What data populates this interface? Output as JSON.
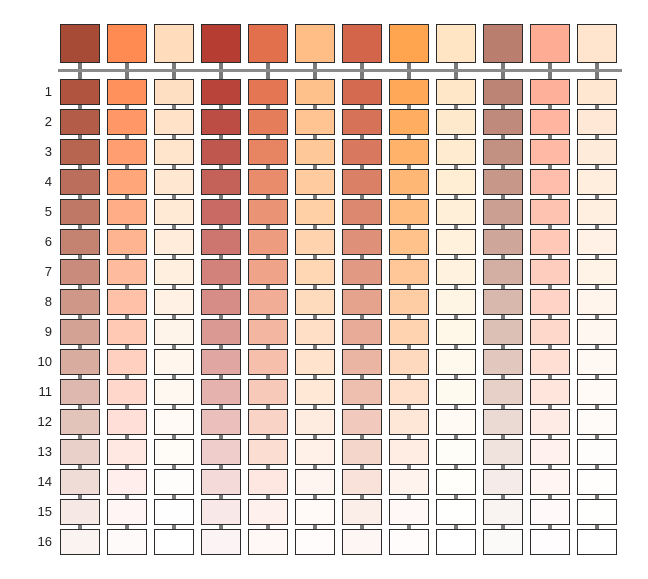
{
  "header_swatches": [
    "#a84b36",
    "#ff8b52",
    "#ffdcbc",
    "#b53d31",
    "#e2704c",
    "#ffbe86",
    "#d2654a",
    "#ffa44f",
    "#ffe5c4",
    "#b97e6d",
    "#ffac95",
    "#ffe5ce"
  ],
  "rows": [
    {
      "label": "1",
      "colors": [
        "#b0543f",
        "#ff915c",
        "#ffdfc2",
        "#b8443a",
        "#e47653",
        "#ffc18c",
        "#d46b50",
        "#ffa857",
        "#ffe7c8",
        "#bc8474",
        "#ffb09a",
        "#ffe7d2"
      ]
    },
    {
      "label": "2",
      "colors": [
        "#b35c48",
        "#ff9866",
        "#ffe2c7",
        "#bc4d44",
        "#e57d5b",
        "#ffc492",
        "#d67257",
        "#ffad60",
        "#ffe9cc",
        "#bf8a7b",
        "#ffb59f",
        "#ffe9d6"
      ]
    },
    {
      "label": "3",
      "colors": [
        "#b76551",
        "#ff9f71",
        "#ffe5cc",
        "#c0574e",
        "#e78563",
        "#ffc898",
        "#d8795f",
        "#ffb26a",
        "#ffebd0",
        "#c39182",
        "#ffb9a5",
        "#ffebda"
      ]
    },
    {
      "label": "4",
      "colors": [
        "#bb6e5b",
        "#ffa67b",
        "#ffe7d1",
        "#c46159",
        "#e98c6c",
        "#ffcb9f",
        "#da8067",
        "#ffb775",
        "#ffedd4",
        "#c7988a",
        "#ffbeab",
        "#ffeddd"
      ]
    },
    {
      "label": "5",
      "colors": [
        "#c07866",
        "#ffad86",
        "#ffeaD6",
        "#c96b64",
        "#eb9475",
        "#ffcfa6",
        "#dc8870",
        "#ffbd80",
        "#ffefd8",
        "#cba092",
        "#ffc3b1",
        "#ffefe1"
      ]
    },
    {
      "label": "6",
      "colors": [
        "#c48271",
        "#ffb491",
        "#ffecda",
        "#cd766f",
        "#ed9c7f",
        "#ffd3ad",
        "#df9079",
        "#ffc28b",
        "#fff1dc",
        "#cfa79a",
        "#ffc8b7",
        "#fff1e5"
      ]
    },
    {
      "label": "7",
      "colors": [
        "#c98c7c",
        "#ffbb9d",
        "#ffefdf",
        "#d2827b",
        "#efa48a",
        "#ffd7b5",
        "#e29983",
        "#ffc797",
        "#fff3e0",
        "#d3afa3",
        "#ffcdbe",
        "#fff3e8"
      ]
    },
    {
      "label": "8",
      "colors": [
        "#ce9788",
        "#ffc2a8",
        "#fff1e4",
        "#d68d88",
        "#f1ad95",
        "#ffdbbd",
        "#e5a28d",
        "#ffcda3",
        "#fff5e4",
        "#d8b7ac",
        "#ffd3c5",
        "#fff5ec"
      ]
    },
    {
      "label": "9",
      "colors": [
        "#d3a294",
        "#ffc9b4",
        "#fff4e9",
        "#db9994",
        "#f3b6a0",
        "#ffdfc5",
        "#e8ab98",
        "#ffd3b0",
        "#fff7e8",
        "#dcbfb5",
        "#ffd8cc",
        "#fff7f0"
      ]
    },
    {
      "label": "10",
      "colors": [
        "#d8ada0",
        "#ffd0bf",
        "#fff6ed",
        "#e0a6a1",
        "#f5bfac",
        "#ffe3cd",
        "#ebb5a3",
        "#ffd9bd",
        "#fff8ec",
        "#e1c7be",
        "#ffdfd4",
        "#fff8f3"
      ]
    },
    {
      "label": "11",
      "colors": [
        "#deb8ae",
        "#ffd8cb",
        "#fff8f1",
        "#e5b2ae",
        "#f7c9b8",
        "#ffe8d6",
        "#eebfaf",
        "#ffe0ca",
        "#fffaf0",
        "#e6d0c8",
        "#ffe5dc",
        "#fffaf6"
      ]
    },
    {
      "label": "12",
      "colors": [
        "#e3c4bb",
        "#ffdfd7",
        "#fffaf5",
        "#eabfbc",
        "#f9d3c5",
        "#ffece0",
        "#f1cabd",
        "#ffe7d7",
        "#fffbf4",
        "#ebd9d3",
        "#ffebe5",
        "#fffbf8"
      ]
    },
    {
      "label": "13",
      "colors": [
        "#e9d0c9",
        "#ffe7e2",
        "#fffcf8",
        "#efcdca",
        "#fbddd2",
        "#fff0e8",
        "#f5d6cb",
        "#ffede4",
        "#fffdf7",
        "#f0e2dd",
        "#fff1ed",
        "#fffdfb"
      ]
    },
    {
      "label": "14",
      "colors": [
        "#efdcd7",
        "#ffeeec",
        "#fffdfb",
        "#f4dbd9",
        "#fde7e0",
        "#fff5f0",
        "#f8e2da",
        "#fff3ee",
        "#fffefa",
        "#f5ebe8",
        "#fff6f4",
        "#fffefd"
      ]
    },
    {
      "label": "15",
      "colors": [
        "#f5e8e5",
        "#fff5f4",
        "#fffefe",
        "#f8e9e8",
        "#fef1ed",
        "#fff9f7",
        "#fbeee9",
        "#fff8f6",
        "#fffffd",
        "#f9f3f2",
        "#fffaf9",
        "#fffffe"
      ]
    },
    {
      "label": "16",
      "colors": [
        "#faf3f2",
        "#fffafa",
        "#ffffff",
        "#fcf4f4",
        "#fff8f6",
        "#fffcfb",
        "#fdf6f4",
        "#fffcfb",
        "#ffffff",
        "#fcf9f9",
        "#fffdfd",
        "#ffffff"
      ]
    }
  ],
  "colors": {
    "border": "#2b2b2b",
    "connector": "#7a7a7a",
    "header_bar": "#8a8a8a",
    "label_text": "#222222"
  }
}
